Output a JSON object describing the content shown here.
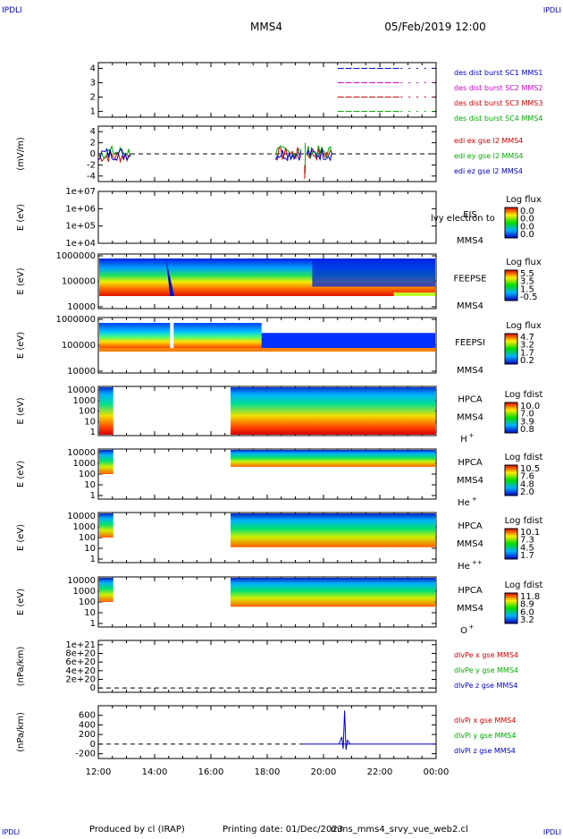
{
  "header": {
    "corner_left_top": "IPDLI",
    "corner_right_top": "IPDLI",
    "mission": "MMS4",
    "datetime": "05/Feb/2019 12:00"
  },
  "footer": {
    "produced_by": "Produced by cl (IRAP)",
    "printing_date": "Printing date: 01/Dec/2023",
    "filename": "mms_mms4_srvy_vue_web2.cl",
    "corner_left_bottom": "IPDLI",
    "corner_right_bottom": "IPDLI"
  },
  "x_ticks": [
    "12:00",
    "14:00",
    "16:00",
    "18:00",
    "20:00",
    "22:00",
    "00:00"
  ],
  "chart_data": [
    {
      "type": "line",
      "panel": "burst-intervals",
      "ylabel": "",
      "yticks": [
        "1",
        "2",
        "3",
        "4"
      ],
      "ylim": [
        0.6,
        4.4
      ],
      "series": [
        {
          "name": "des dist burst SC1 MMS1",
          "color": "#0000cc",
          "y": 4
        },
        {
          "name": "des dist burst SC2 MMS2",
          "color": "#cc00cc",
          "y": 3
        },
        {
          "name": "des dist burst SC3 MMS3",
          "color": "#cc0000",
          "y": 2
        },
        {
          "name": "des dist burst SC4 MMS4",
          "color": "#00aa00",
          "y": 1
        }
      ],
      "note": "dashes from ~20:30 to 24:00"
    },
    {
      "type": "line",
      "panel": "edi-electric-field",
      "ylabel": "(mV/m)",
      "yticks": [
        "4",
        "2",
        "0",
        "-2",
        "-4"
      ],
      "ylim": [
        -5,
        5
      ],
      "series": [
        {
          "name": "edi ex gse l2 MMS4",
          "color": "#cc0000"
        },
        {
          "name": "edi ey gse l2 MMS4",
          "color": "#00aa00"
        },
        {
          "name": "edi ez gse l2 MMS4",
          "color": "#0000cc"
        }
      ]
    },
    {
      "type": "heatmap",
      "panel": "eis",
      "ylabel": "E (eV)",
      "yticks": [
        "1e+07",
        "1e+06",
        "1e+05",
        "1e+04"
      ],
      "right_labels": [
        "EIS",
        "MMS4"
      ],
      "overlay_text": "lvy electron to",
      "colorbar_title": "Log flux",
      "colorbar_ticks": [
        "0.0",
        "0.0",
        "0.0",
        "0.0"
      ]
    },
    {
      "type": "heatmap",
      "panel": "feeps-electrons",
      "ylabel": "E (eV)",
      "yticks": [
        "1000000",
        "100000",
        "10000"
      ],
      "right_labels": [
        "FEEPSE",
        "MMS4"
      ],
      "colorbar_title": "Log flux",
      "colorbar_ticks": [
        "5.5",
        "3.5",
        "1.5",
        "-0.5"
      ]
    },
    {
      "type": "heatmap",
      "panel": "feeps-ions",
      "ylabel": "E (eV)",
      "yticks": [
        "1000000",
        "100000",
        "10000"
      ],
      "right_labels": [
        "FEEPSI",
        "MMS4"
      ],
      "colorbar_title": "Log flux",
      "colorbar_ticks": [
        "4.7",
        "3.2",
        "1.7",
        "0.2"
      ]
    },
    {
      "type": "heatmap",
      "panel": "hpca-h",
      "ylabel": "E (eV)",
      "yticks": [
        "10000",
        "1000",
        "100",
        "10",
        "1"
      ],
      "right_labels": [
        "HPCA",
        "MMS4"
      ],
      "species": "H",
      "species_sup": "+",
      "colorbar_title": "Log fdist",
      "colorbar_ticks": [
        "10.0",
        "7.0",
        "3.9",
        "0.8"
      ]
    },
    {
      "type": "heatmap",
      "panel": "hpca-he",
      "ylabel": "E (eV)",
      "yticks": [
        "10000",
        "1000",
        "100",
        "10",
        "1"
      ],
      "right_labels": [
        "HPCA",
        "MMS4"
      ],
      "species": "He",
      "species_sup": "+",
      "colorbar_title": "Log fdist",
      "colorbar_ticks": [
        "10.5",
        "7.6",
        "4.8",
        "2.0"
      ]
    },
    {
      "type": "heatmap",
      "panel": "hpca-he2",
      "ylabel": "E (eV)",
      "yticks": [
        "10000",
        "1000",
        "100",
        "10",
        "1"
      ],
      "right_labels": [
        "HPCA",
        "MMS4"
      ],
      "species": "He",
      "species_sup": "++",
      "colorbar_title": "Log fdist",
      "colorbar_ticks": [
        "10.1",
        "7.3",
        "4.5",
        "1.7"
      ]
    },
    {
      "type": "heatmap",
      "panel": "hpca-o",
      "ylabel": "E (eV)",
      "yticks": [
        "10000",
        "1000",
        "100",
        "10",
        "1"
      ],
      "right_labels": [
        "HPCA",
        "MMS4"
      ],
      "species": "O",
      "species_sup": "+",
      "colorbar_title": "Log fdist",
      "colorbar_ticks": [
        "11.8",
        "8.9",
        "6.0",
        "3.2"
      ]
    },
    {
      "type": "line",
      "panel": "pressure-gradient-electrons",
      "ylabel": "(nPa/km)",
      "yticks": [
        "1e+21",
        "8e+20",
        "6e+20",
        "4e+20",
        "2e+20",
        "0"
      ],
      "ylim": [
        -1e+20,
        1.1e+21
      ],
      "series": [
        {
          "name": "dlvPe x gse MMS4",
          "color": "#cc0000"
        },
        {
          "name": "dlvPe y gse MMS4",
          "color": "#00aa00"
        },
        {
          "name": "dlvPe z gse MMS4",
          "color": "#0000cc"
        }
      ]
    },
    {
      "type": "line",
      "panel": "pressure-gradient-ions",
      "ylabel": "(nPa/km)",
      "yticks": [
        "600",
        "400",
        "200",
        "0",
        "-200"
      ],
      "ylim": [
        -300,
        800
      ],
      "series": [
        {
          "name": "dlvPi x gse MMS4",
          "color": "#cc0000"
        },
        {
          "name": "dlvPi y gse MMS4",
          "color": "#00aa00"
        },
        {
          "name": "dlvPi z gse MMS4",
          "color": "#0000cc"
        }
      ],
      "note": "spike ~700 near 20:45"
    }
  ]
}
